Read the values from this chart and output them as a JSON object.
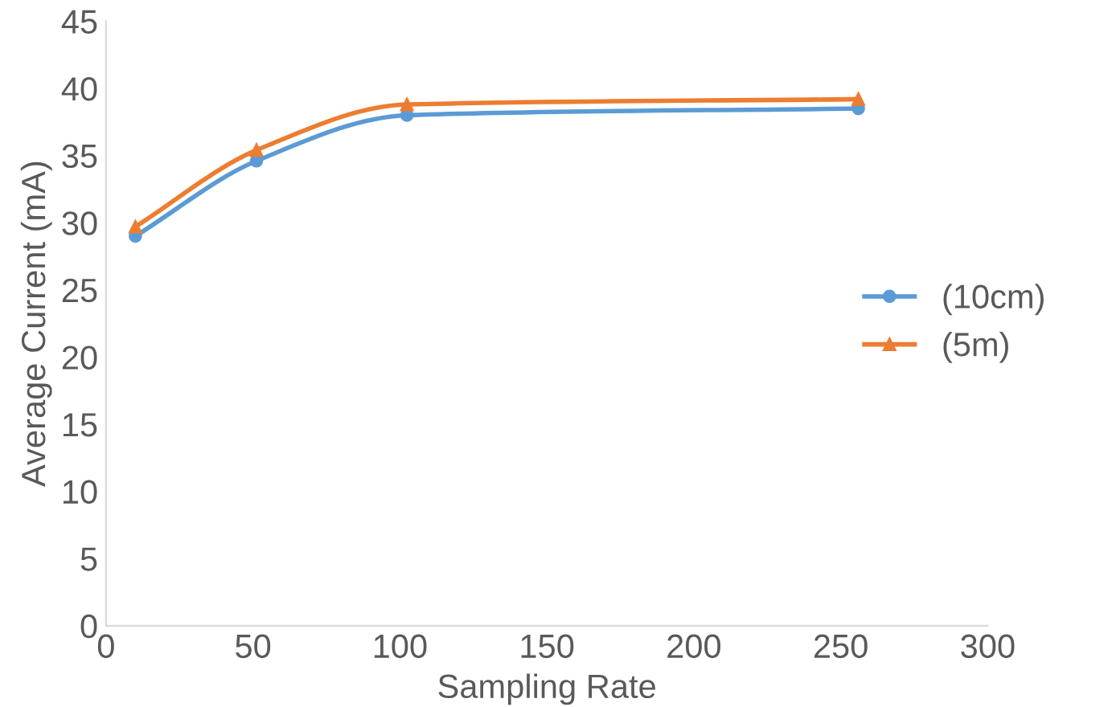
{
  "chart_data": {
    "type": "line",
    "xlabel": "Sampling Rate",
    "ylabel": "Average Current (mA)",
    "xlim": [
      0,
      300
    ],
    "xticks": [
      0,
      50,
      100,
      150,
      200,
      250,
      300
    ],
    "ylim": [
      0,
      45
    ],
    "yticks": [
      0,
      5,
      10,
      15,
      20,
      25,
      30,
      35,
      40,
      45
    ],
    "grid": false,
    "legend": "right",
    "line_style": "solid",
    "x": [
      10,
      51.2,
      102.4,
      256
    ],
    "series": [
      {
        "name": "(10cm)",
        "color": "#5b9bd5",
        "marker": "circle",
        "values": [
          29.0,
          34.6,
          38.0,
          38.5
        ]
      },
      {
        "name": "(5m)",
        "color": "#ed7d31",
        "marker": "triangle",
        "values": [
          29.7,
          35.4,
          38.8,
          39.2
        ]
      }
    ]
  }
}
